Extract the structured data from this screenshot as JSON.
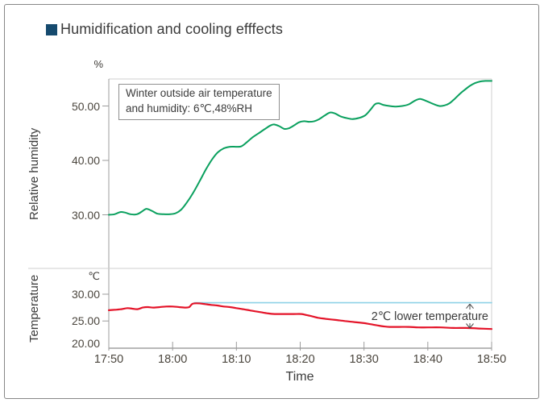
{
  "title": {
    "text": "Humidification and cooling efffects",
    "accent_color": "#154a6e"
  },
  "chart_data": {
    "type": "line",
    "title": "Humidification and cooling efffects",
    "xlabel": "Time",
    "x_ticks": [
      {
        "label": "17:50",
        "minute": 0
      },
      {
        "label": "18:00",
        "minute": 10
      },
      {
        "label": "18:10",
        "minute": 20
      },
      {
        "label": "18:20",
        "minute": 30
      },
      {
        "label": "18:30",
        "minute": 40
      },
      {
        "label": "18:40",
        "minute": 50
      },
      {
        "label": "18:50",
        "minute": 60
      }
    ],
    "grid": false,
    "legend": "none",
    "panels": [
      {
        "name": "relative-humidity-panel",
        "ylabel": "Relative humidity",
        "unit": "%",
        "ylim": [
          20,
          55
        ],
        "y_ticks": [
          {
            "label": "50.00",
            "value": 50
          },
          {
            "label": "40.00",
            "value": 40
          },
          {
            "label": "30.00",
            "value": 30
          }
        ],
        "annotation": {
          "lines": [
            "Winter outside air temperature",
            "and humidity:  6℃,48%RH"
          ]
        },
        "series": [
          {
            "name": "relative-humidity",
            "color": "#0aa05e",
            "points": [
              [
                0,
                30.0
              ],
              [
                0.9,
                30.1
              ],
              [
                1.8,
                30.5
              ],
              [
                2.6,
                30.4
              ],
              [
                3.4,
                30.1
              ],
              [
                4.4,
                30.1
              ],
              [
                5.2,
                30.6
              ],
              [
                5.9,
                31.1
              ],
              [
                6.8,
                30.7
              ],
              [
                7.6,
                30.2
              ],
              [
                8.6,
                30.1
              ],
              [
                9.6,
                30.1
              ],
              [
                10.5,
                30.3
              ],
              [
                11.3,
                30.9
              ],
              [
                12.2,
                32.2
              ],
              [
                13.2,
                34.0
              ],
              [
                14.2,
                36.1
              ],
              [
                15.2,
                38.3
              ],
              [
                16.2,
                40.2
              ],
              [
                17.1,
                41.5
              ],
              [
                18,
                42.2
              ],
              [
                19,
                42.5
              ],
              [
                20,
                42.5
              ],
              [
                20.8,
                42.6
              ],
              [
                21.6,
                43.3
              ],
              [
                22.5,
                44.2
              ],
              [
                23.5,
                45.0
              ],
              [
                24.5,
                45.8
              ],
              [
                25.3,
                46.4
              ],
              [
                25.9,
                46.6
              ],
              [
                26.7,
                46.3
              ],
              [
                27.5,
                45.8
              ],
              [
                28.2,
                45.9
              ],
              [
                29,
                46.4
              ],
              [
                29.8,
                47.0
              ],
              [
                30.6,
                47.2
              ],
              [
                31.4,
                47.1
              ],
              [
                32.2,
                47.2
              ],
              [
                33,
                47.6
              ],
              [
                33.9,
                48.3
              ],
              [
                34.7,
                48.8
              ],
              [
                35.5,
                48.6
              ],
              [
                36.3,
                48.1
              ],
              [
                37.2,
                47.8
              ],
              [
                38.2,
                47.6
              ],
              [
                39.2,
                47.8
              ],
              [
                40.2,
                48.3
              ],
              [
                41,
                49.3
              ],
              [
                41.7,
                50.3
              ],
              [
                42.3,
                50.5
              ],
              [
                43,
                50.2
              ],
              [
                44,
                50.0
              ],
              [
                45,
                49.9
              ],
              [
                46,
                50.0
              ],
              [
                47,
                50.3
              ],
              [
                48,
                51.0
              ],
              [
                48.8,
                51.3
              ],
              [
                49.8,
                50.9
              ],
              [
                50.8,
                50.4
              ],
              [
                51.8,
                50.0
              ],
              [
                52.6,
                50.1
              ],
              [
                53.4,
                50.5
              ],
              [
                54.2,
                51.3
              ],
              [
                55,
                52.2
              ],
              [
                55.8,
                53.0
              ],
              [
                56.6,
                53.7
              ],
              [
                57.4,
                54.2
              ],
              [
                58.2,
                54.5
              ],
              [
                59,
                54.6
              ],
              [
                60,
                54.6
              ]
            ]
          }
        ]
      },
      {
        "name": "temperature-panel",
        "ylabel": "Temperature",
        "unit": "℃",
        "ylim": [
          20,
          35
        ],
        "y_ticks": [
          {
            "label": "30.00",
            "value": 30
          },
          {
            "label": "25.00",
            "value": 25
          },
          {
            "label": "20.00",
            "value": 20
          }
        ],
        "annotation": {
          "text": "2℃ lower temperature"
        },
        "series": [
          {
            "name": "baseline-without-cooling",
            "color": "#8ed1e6",
            "smooth": false,
            "points": [
              [
                13.4,
                28.4
              ],
              [
                60,
                28.4
              ]
            ]
          },
          {
            "name": "temperature",
            "color": "#e41429",
            "points": [
              [
                0,
                27.0
              ],
              [
                1,
                27.1
              ],
              [
                2,
                27.2
              ],
              [
                2.9,
                27.4
              ],
              [
                3.7,
                27.3
              ],
              [
                4.5,
                27.2
              ],
              [
                5.3,
                27.5
              ],
              [
                6.1,
                27.6
              ],
              [
                7,
                27.5
              ],
              [
                8,
                27.6
              ],
              [
                9,
                27.7
              ],
              [
                10,
                27.7
              ],
              [
                11,
                27.6
              ],
              [
                12,
                27.5
              ],
              [
                12.6,
                27.6
              ],
              [
                13.1,
                28.2
              ],
              [
                13.8,
                28.3
              ],
              [
                14.8,
                28.2
              ],
              [
                16,
                28.0
              ],
              [
                17,
                27.9
              ],
              [
                18,
                27.7
              ],
              [
                19,
                27.6
              ],
              [
                20,
                27.4
              ],
              [
                21,
                27.2
              ],
              [
                22,
                27.0
              ],
              [
                23,
                26.8
              ],
              [
                24,
                26.6
              ],
              [
                25,
                26.4
              ],
              [
                26,
                26.3
              ],
              [
                27.5,
                26.3
              ],
              [
                29,
                26.3
              ],
              [
                30.2,
                26.3
              ],
              [
                31,
                26.1
              ],
              [
                31.8,
                25.9
              ],
              [
                32.8,
                25.6
              ],
              [
                34,
                25.4
              ],
              [
                35.5,
                25.2
              ],
              [
                37,
                25.0
              ],
              [
                38.5,
                24.8
              ],
              [
                40,
                24.6
              ],
              [
                41,
                24.4
              ],
              [
                42,
                24.2
              ],
              [
                43,
                24.0
              ],
              [
                44,
                23.9
              ],
              [
                45.5,
                23.9
              ],
              [
                47,
                23.9
              ],
              [
                48.5,
                23.8
              ],
              [
                50,
                23.8
              ],
              [
                52,
                23.8
              ],
              [
                54,
                23.7
              ],
              [
                56,
                23.7
              ],
              [
                58,
                23.6
              ],
              [
                60,
                23.5
              ]
            ]
          }
        ]
      }
    ]
  }
}
